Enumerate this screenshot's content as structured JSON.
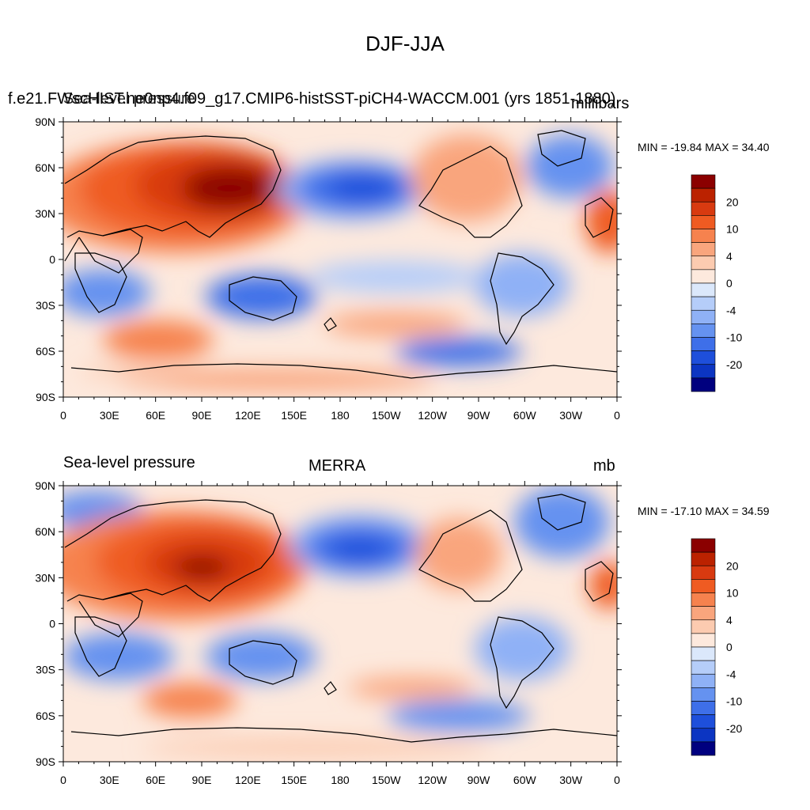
{
  "figure": {
    "title": "DJF-JJA"
  },
  "panels": [
    {
      "left_label": "Sea-level pressure",
      "left_label_overlay": "f.e21.FWscHIST.ne0np4.f09_g17.CMIP6-histSST-piCH4-WACCM.001 (yrs 1851-1880)",
      "center_label": "",
      "right_label": "millibars",
      "stats": "MIN = -19.84 MAX =  34.40",
      "colorbar_labels": [
        "20",
        "10",
        "4",
        "0",
        "-4",
        "-10",
        "-20"
      ]
    },
    {
      "left_label": "Sea-level pressure",
      "center_label": "MERRA",
      "right_label": "mb",
      "stats": "MIN = -17.10 MAX =  34.59",
      "colorbar_labels": [
        "20",
        "10",
        "4",
        "0",
        "-4",
        "-10",
        "-20"
      ]
    }
  ],
  "axes": {
    "lat_ticks": [
      "90N",
      "60N",
      "30N",
      "0",
      "30S",
      "60S",
      "90S"
    ],
    "lon_ticks": [
      "0",
      "30E",
      "60E",
      "90E",
      "120E",
      "150E",
      "180",
      "150W",
      "120W",
      "90W",
      "60W",
      "30W",
      "0"
    ]
  },
  "colorbar": {
    "colors": [
      "#8b0000",
      "#bb2200",
      "#d83a10",
      "#ef5b22",
      "#f6824e",
      "#f9a57d",
      "#fccbb0",
      "#fde9dd",
      "#dbe8fb",
      "#b5cdf9",
      "#8fb1f6",
      "#6592f0",
      "#3e6fe9",
      "#1e4fdb",
      "#0c35c2",
      "#00007f"
    ]
  }
}
